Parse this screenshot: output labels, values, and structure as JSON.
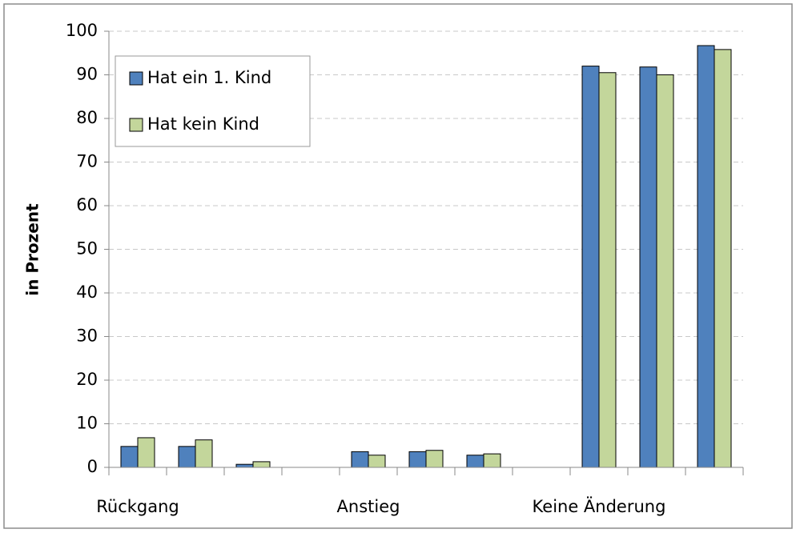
{
  "chart_data": {
    "type": "bar",
    "ylabel": "in Prozent",
    "categories": [
      "Rückgang",
      null,
      null,
      null,
      "Anstieg",
      null,
      null,
      null,
      "Keine Änderung",
      null,
      null
    ],
    "series": [
      {
        "name": "Hat ein 1. Kind",
        "color": "#4f81bd",
        "values": [
          4.8,
          4.8,
          0.7,
          null,
          3.6,
          3.6,
          2.8,
          null,
          92,
          91.8,
          96.7
        ]
      },
      {
        "name": "Hat kein Kind",
        "color": "#c3d69b",
        "values": [
          6.8,
          6.3,
          1.3,
          null,
          2.8,
          3.9,
          3.1,
          null,
          90.5,
          90,
          95.8
        ]
      }
    ],
    "ylim": [
      0,
      100
    ],
    "yticks": [
      0,
      10,
      20,
      30,
      40,
      50,
      60,
      70,
      80,
      90,
      100
    ],
    "grid": true,
    "legend": "upper left"
  }
}
